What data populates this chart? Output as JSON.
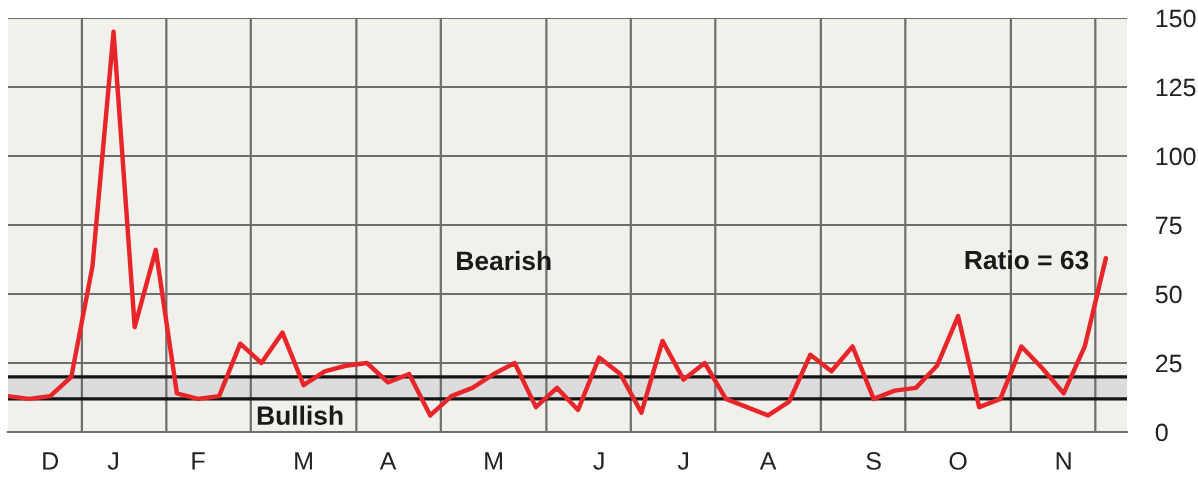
{
  "chart_data": {
    "type": "line",
    "categories": [
      null,
      null,
      "D",
      null,
      null,
      "J",
      null,
      null,
      null,
      "F",
      null,
      null,
      null,
      null,
      "M",
      null,
      null,
      null,
      "A",
      null,
      null,
      null,
      null,
      "M",
      null,
      null,
      null,
      null,
      "J",
      null,
      null,
      null,
      "J",
      null,
      null,
      null,
      "A",
      null,
      null,
      null,
      null,
      "S",
      null,
      null,
      null,
      "O",
      null,
      null,
      null,
      null,
      "N",
      null,
      null
    ],
    "series": [
      {
        "color": "#e8262a",
        "values": [
          13,
          12,
          13,
          20,
          60,
          145,
          38,
          66,
          14,
          12,
          13,
          32,
          25,
          36,
          17,
          22,
          24,
          25,
          18,
          21,
          6,
          13,
          16,
          21,
          25,
          9,
          16,
          8,
          27,
          21,
          7,
          33,
          19,
          25,
          12,
          9,
          6,
          11,
          28,
          22,
          31,
          12,
          15,
          16,
          24,
          42,
          9,
          12,
          31,
          23,
          14,
          31,
          63
        ],
        "value_labels": [
          null,
          null,
          null,
          null,
          null,
          null,
          null,
          null,
          null,
          null,
          null,
          null,
          null,
          null,
          null,
          null,
          null,
          null,
          null,
          null,
          null,
          null,
          null,
          null,
          null,
          null,
          null,
          null,
          null,
          null,
          null,
          null,
          null,
          null,
          null,
          null,
          null,
          null,
          null,
          null,
          null,
          null,
          null,
          null,
          null,
          null,
          null,
          null,
          null,
          null,
          null,
          null,
          "Ratio = 63"
        ]
      }
    ],
    "ylim": [
      0,
      150
    ],
    "yticks": [
      0,
      25,
      50,
      75,
      100,
      125,
      150
    ],
    "grid": "y",
    "line_style": "solid",
    "bands": [
      {
        "axis": "y",
        "from": 12,
        "to": 20,
        "color": "#dcdcdc"
      }
    ],
    "ref_lines": [
      {
        "axis": "y",
        "value": 12,
        "color": "#141414"
      },
      {
        "axis": "y",
        "value": 20,
        "color": "#141414"
      }
    ],
    "annotations": [
      "Bearish",
      "Bullish"
    ]
  }
}
